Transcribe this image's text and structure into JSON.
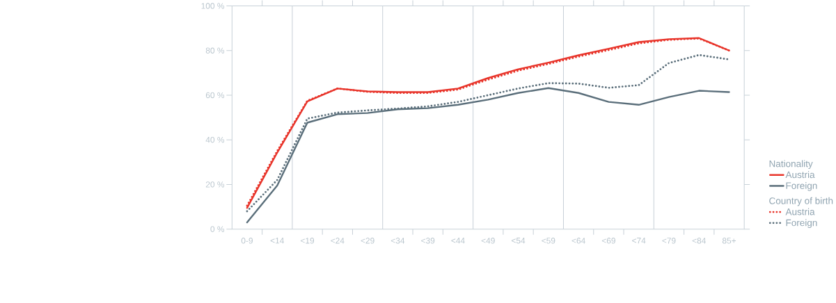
{
  "chart_data": {
    "type": "line",
    "categories": [
      "0-9",
      "<14",
      "<19",
      "<24",
      "<29",
      "<34",
      "<39",
      "<44",
      "<49",
      "<54",
      "<59",
      "<64",
      "<69",
      "<74",
      "<79",
      "<84",
      "85+"
    ],
    "series": [
      {
        "name": "Austria",
        "color": "#e8342a",
        "line_style": "solid",
        "values": [
          9.5,
          34.3,
          57.2,
          63,
          61.7,
          61.4,
          61.4,
          63,
          67.7,
          71.6,
          74.6,
          77.9,
          80.8,
          83.8,
          85.1,
          85.6,
          80
        ]
      },
      {
        "name": "Foreign",
        "color": "#5a6e7a",
        "line_style": "solid",
        "values": [
          3,
          19.5,
          47.7,
          51.5,
          52,
          53.7,
          54.2,
          55.7,
          58,
          61,
          63.2,
          61,
          57,
          55.7,
          59.2,
          62,
          61.4
        ]
      },
      {
        "name": "Austria",
        "color": "#e8342a",
        "line_style": "dotted",
        "values": [
          10.5,
          35,
          57.5,
          63,
          61.5,
          61,
          61,
          62.5,
          67,
          71,
          74,
          77.3,
          80.2,
          83.2,
          84.8,
          85.4,
          80
        ]
      },
      {
        "name": "Foreign",
        "color": "#5a6e7a",
        "line_style": "dotted",
        "values": [
          8,
          22,
          49.5,
          52.2,
          53.2,
          54,
          55,
          57,
          60,
          63,
          65.4,
          65.2,
          63.3,
          64.5,
          74.4,
          78,
          76
        ]
      }
    ],
    "ylim": [
      0,
      100
    ],
    "yticks": [
      {
        "value": 0,
        "label": "0 %"
      },
      {
        "value": 20,
        "label": "20 %"
      },
      {
        "value": 40,
        "label": "40 %"
      },
      {
        "value": 60,
        "label": "60 %"
      },
      {
        "value": 80,
        "label": "80 %"
      },
      {
        "value": 100,
        "label": "100 %"
      }
    ],
    "grid": "x",
    "legend": "bottom right",
    "legend_title": "Nationality",
    "annotations": [
      "Country of birth"
    ]
  }
}
